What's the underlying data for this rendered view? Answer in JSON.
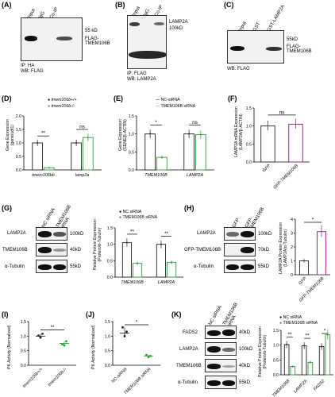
{
  "panels": {
    "A": {
      "label": "(A)",
      "lanes": [
        "Input",
        "IgG",
        "Co-IP"
      ],
      "marker_kd": "55 kD",
      "band": "FLAG-\nTMEM106B",
      "ip": "IP: HA",
      "wb": "WB: FLAG"
    },
    "B": {
      "label": "(B)",
      "lanes": [
        "Input",
        "IgG",
        "Co-IP"
      ],
      "band": "LAMP2A",
      "marker_kd": "100kD",
      "ip": "IP: FLAG",
      "wb": "WB: LAMP2A"
    },
    "C": {
      "label": "(C)",
      "lanes": [
        "Input",
        "GST",
        "GST-LAMP2A"
      ],
      "marker_kd": "55kD",
      "band": "FLAG-\nTMEM106B",
      "wb": "WB: FLAG"
    },
    "D": {
      "label": "(D)",
      "legend": [
        "tmem106b+/+",
        "tmem106b-/-"
      ],
      "ylabel": "Gene Expression\n(gene/udt1)",
      "sig": [
        "**",
        "ns"
      ]
    },
    "E": {
      "label": "(E)",
      "legend": [
        "NC-siRNA",
        "TMEM106B siRNA"
      ],
      "ylabel": "Gene Expression\n(GENE/β-ACTIN)",
      "sig": [
        "*",
        "ns"
      ]
    },
    "F": {
      "label": "(F)",
      "ylabel": "LAMP2A mRNA Expression\n(LAMP2A/β-ACTIN)",
      "sig": [
        "ns"
      ]
    },
    "G": {
      "label": "(G)",
      "lanes": [
        "NC siRNA",
        "TMEM106B siRNA"
      ],
      "rows": [
        "LAMP2A",
        "TMEM106B",
        "α-Tubulin"
      ],
      "kd": [
        "100kD",
        "40kD",
        "55kD"
      ],
      "legend": [
        "NC siRNA",
        "TMEM106B siRNA"
      ],
      "ylabel": "Relative Protein Expression\n(Protein/α-Tubulin)",
      "sig": [
        "**",
        "**"
      ]
    },
    "H": {
      "label": "(H)",
      "lanes": [
        "GFP",
        "GFP-TMEM106B"
      ],
      "rows": [
        "LAMP2A",
        "GFP-TMEM106B",
        "α-Tubulin"
      ],
      "kd": [
        "100kD",
        "70kD",
        "55kD"
      ],
      "ylabel": "LAMP2A Protein Expression\n(LAMP2A/α-Tubulin)",
      "sig": [
        "*"
      ]
    },
    "I": {
      "label": "(I)",
      "ylabel": "PK Activity (Normalized)",
      "sig": [
        "**"
      ]
    },
    "J": {
      "label": "(J)",
      "ylabel": "PK Activity (Normalized)",
      "sig": [
        "*"
      ]
    },
    "K": {
      "label": "(K)",
      "lanes": [
        "NC siRNA",
        "TMEM106B siRNA"
      ],
      "rows": [
        "FADS2",
        "LAMP2A",
        "TMEM106B",
        "α-Tubulin"
      ],
      "kd": [
        "40kD",
        "100kD",
        "40kD",
        "55kD"
      ],
      "legend": [
        "NC siRNA",
        "TMEM106B siRNA"
      ],
      "ylabel": "Relative Protein Expression\n(Protein/α-Tubulin)",
      "sig": [
        "**",
        "**",
        "*"
      ]
    }
  },
  "chart_data": [
    {
      "panel": "D",
      "type": "bar",
      "categories": [
        "tmem106bb",
        "lamp2a"
      ],
      "series": [
        {
          "name": "tmem106b+/+",
          "values": [
            1.0,
            1.0
          ]
        },
        {
          "name": "tmem106b-/-",
          "values": [
            0.08,
            1.2
          ]
        }
      ],
      "ylim": [
        0,
        2.0
      ],
      "yticks": [
        "0.0",
        "0.5",
        "1.0",
        "1.5",
        "2.0"
      ],
      "colors": [
        "#222222",
        "#2e9e3a"
      ]
    },
    {
      "panel": "E",
      "type": "bar",
      "categories": [
        "TMEM106B",
        "LAMP2A"
      ],
      "series": [
        {
          "name": "NC-siRNA",
          "values": [
            1.0,
            1.0
          ]
        },
        {
          "name": "TMEM106B siRNA",
          "values": [
            0.35,
            0.98
          ]
        }
      ],
      "ylim": [
        0,
        1.5
      ],
      "yticks": [
        "0.0",
        "0.5",
        "1.0",
        "1.5"
      ],
      "colors": [
        "#222222",
        "#2e9e3a"
      ]
    },
    {
      "panel": "F",
      "type": "bar",
      "categories": [
        "GFP",
        "GFP-TMEM106B"
      ],
      "values": [
        1.0,
        1.05
      ],
      "ylim": [
        0,
        1.5
      ],
      "yticks": [
        "0.0",
        "0.5",
        "1.0",
        "1.5"
      ],
      "colors": [
        "#222222",
        "#8a1a8a"
      ]
    },
    {
      "panel": "G",
      "type": "bar",
      "categories": [
        "TMEM106B",
        "LAMP2A"
      ],
      "series": [
        {
          "name": "NC siRNA",
          "values": [
            1.05,
            1.0
          ]
        },
        {
          "name": "TMEM106B siRNA",
          "values": [
            0.42,
            0.45
          ]
        }
      ],
      "ylim": [
        0,
        1.5
      ],
      "yticks": [
        "0.0",
        "0.5",
        "1.0",
        "1.5"
      ],
      "colors": [
        "#222222",
        "#2e9e3a"
      ]
    },
    {
      "panel": "H",
      "type": "bar",
      "categories": [
        "GFP",
        "GFP-TMEM106B"
      ],
      "values": [
        1.0,
        3.1
      ],
      "ylim": [
        0,
        4
      ],
      "yticks": [
        "0",
        "1",
        "2",
        "3",
        "4"
      ],
      "colors": [
        "#222222",
        "#8a1a8a"
      ]
    },
    {
      "panel": "I",
      "type": "scatter",
      "categories": [
        "tmem106b+/+",
        "tmem106b-/-"
      ],
      "points": [
        [
          1.02,
          0.95,
          1.08
        ],
        [
          0.72,
          0.68,
          0.82
        ]
      ],
      "means": [
        1.0,
        0.75
      ],
      "ylim": [
        0,
        1.5
      ],
      "yticks": [
        "0.0",
        "0.5",
        "1.0",
        "1.5"
      ],
      "colors": [
        "#222222",
        "#2e9e3a"
      ]
    },
    {
      "panel": "J",
      "type": "scatter",
      "categories": [
        "NC-siRNA",
        "TMEM106B siRNA"
      ],
      "points": [
        [
          1.3,
          1.0,
          1.15
        ],
        [
          0.35,
          0.28,
          0.32
        ]
      ],
      "means": [
        1.1,
        0.32
      ],
      "ylim": [
        0,
        1.5
      ],
      "yticks": [
        "0.0",
        "0.5",
        "1.0",
        "1.5"
      ],
      "colors": [
        "#222222",
        "#2e9e3a"
      ]
    },
    {
      "panel": "K",
      "type": "bar",
      "categories": [
        "TMEM106B",
        "LAMP2A",
        "FADS2"
      ],
      "series": [
        {
          "name": "NC siRNA",
          "values": [
            1.02,
            0.98,
            0.95
          ]
        },
        {
          "name": "TMEM106B siRNA",
          "values": [
            0.28,
            0.42,
            1.35
          ]
        }
      ],
      "ylim": [
        0,
        1.5
      ],
      "yticks": [
        "0.0",
        "0.5",
        "1.0",
        "1.5"
      ],
      "colors": [
        "#222222",
        "#2e9e3a"
      ]
    }
  ]
}
